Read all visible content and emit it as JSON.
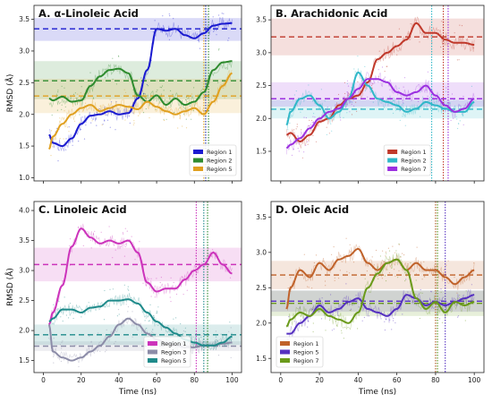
{
  "figure": {
    "panels": [
      "A",
      "B",
      "C",
      "D"
    ]
  },
  "chart_data": [
    {
      "type": "line",
      "title": "A. α-Linoleic Acid",
      "xlabel": "",
      "ylabel": "RMSD (Å)",
      "xlim": [
        -5,
        105
      ],
      "ylim": [
        0.95,
        3.72
      ],
      "xticks": [
        0,
        20,
        40,
        60,
        80,
        100
      ],
      "yticks": [
        1.0,
        1.5,
        2.0,
        2.5,
        3.0,
        3.5
      ],
      "show_xtick_labels": false,
      "legend_position": "lower-right",
      "grid": false,
      "vlines": [
        {
          "x": 86,
          "color": "#1a2fb0"
        },
        {
          "x": 87.5,
          "color": "#2e8b2e"
        },
        {
          "x": 85,
          "color": "#e0a020"
        }
      ],
      "series": [
        {
          "name": "Region 1",
          "color": "#1a1ad0",
          "mean": 3.35,
          "band": [
            3.16,
            3.52
          ],
          "x": [
            3,
            5,
            10,
            15,
            20,
            25,
            30,
            35,
            40,
            45,
            50,
            55,
            60,
            65,
            70,
            75,
            80,
            85,
            90,
            95,
            100
          ],
          "y": [
            1.68,
            1.55,
            1.5,
            1.62,
            1.85,
            1.98,
            2.0,
            2.05,
            2.0,
            2.02,
            2.25,
            2.7,
            3.35,
            3.32,
            3.35,
            3.25,
            3.2,
            3.28,
            3.4,
            3.43,
            3.44
          ]
        },
        {
          "name": "Region 2",
          "color": "#2e8b2e",
          "mean": 2.53,
          "band": [
            2.24,
            2.84
          ],
          "x": [
            3,
            5,
            10,
            15,
            20,
            25,
            30,
            35,
            40,
            45,
            50,
            55,
            60,
            65,
            70,
            75,
            80,
            85,
            90,
            95,
            100
          ],
          "y": [
            2.25,
            2.22,
            2.28,
            2.2,
            2.22,
            2.45,
            2.6,
            2.7,
            2.72,
            2.65,
            2.3,
            2.2,
            2.3,
            2.15,
            2.25,
            2.15,
            2.2,
            2.35,
            2.7,
            2.82,
            2.84
          ]
        },
        {
          "name": "Region 5",
          "color": "#e0a020",
          "mean": 2.29,
          "band": [
            2.02,
            2.56
          ],
          "x": [
            3,
            5,
            10,
            15,
            20,
            25,
            30,
            35,
            40,
            45,
            50,
            55,
            60,
            65,
            70,
            75,
            80,
            85,
            90,
            95,
            100
          ],
          "y": [
            1.45,
            1.65,
            1.85,
            2.0,
            2.1,
            2.15,
            2.05,
            2.1,
            2.15,
            2.12,
            2.08,
            2.2,
            2.12,
            2.05,
            2.0,
            2.05,
            2.1,
            2.0,
            2.2,
            2.45,
            2.65
          ]
        }
      ]
    },
    {
      "type": "line",
      "title": "B. Arachidonic Acid",
      "xlabel": "",
      "ylabel": "",
      "xlim": [
        -5,
        105
      ],
      "ylim": [
        1.05,
        3.72
      ],
      "xticks": [
        0,
        20,
        40,
        60,
        80,
        100
      ],
      "yticks": [
        1.5,
        2.0,
        2.5,
        3.0,
        3.5
      ],
      "show_xtick_labels": false,
      "legend_position": "lower-center",
      "grid": false,
      "vlines": [
        {
          "x": 78,
          "color": "#30b8c8"
        },
        {
          "x": 84,
          "color": "#c0392b"
        },
        {
          "x": 86.5,
          "color": "#9b30e0"
        }
      ],
      "series": [
        {
          "name": "Region 1",
          "color": "#c0392b",
          "mean": 3.24,
          "band": [
            2.96,
            3.52
          ],
          "x": [
            3,
            5,
            10,
            15,
            20,
            25,
            30,
            35,
            40,
            45,
            50,
            55,
            60,
            65,
            70,
            75,
            80,
            85,
            90,
            95,
            100
          ],
          "y": [
            1.75,
            1.78,
            1.65,
            1.75,
            1.95,
            2.0,
            2.2,
            2.3,
            2.35,
            2.55,
            2.9,
            3.0,
            3.1,
            3.2,
            3.45,
            3.3,
            3.3,
            3.2,
            3.15,
            3.15,
            3.12
          ]
        },
        {
          "name": "Region 2",
          "color": "#30b8c8",
          "mean": 2.14,
          "band": [
            2.0,
            2.28
          ],
          "x": [
            3,
            5,
            10,
            15,
            20,
            25,
            30,
            35,
            40,
            45,
            50,
            55,
            60,
            65,
            70,
            75,
            80,
            85,
            90,
            95,
            100
          ],
          "y": [
            1.9,
            2.1,
            2.3,
            2.35,
            2.2,
            2.0,
            2.1,
            2.3,
            2.7,
            2.5,
            2.3,
            2.25,
            2.2,
            2.1,
            2.15,
            2.25,
            2.2,
            2.15,
            2.1,
            2.1,
            2.25
          ]
        },
        {
          "name": "Region 7",
          "color": "#9b30e0",
          "mean": 2.3,
          "band": [
            2.18,
            2.55
          ],
          "x": [
            3,
            5,
            10,
            15,
            20,
            25,
            30,
            35,
            40,
            45,
            50,
            55,
            60,
            65,
            70,
            75,
            80,
            85,
            90,
            95,
            100
          ],
          "y": [
            1.55,
            1.6,
            1.7,
            1.85,
            2.0,
            2.1,
            2.15,
            2.3,
            2.45,
            2.6,
            2.6,
            2.55,
            2.4,
            2.35,
            2.4,
            2.5,
            2.35,
            2.2,
            2.1,
            2.15,
            2.3
          ]
        }
      ]
    },
    {
      "type": "line",
      "title": "C. Linoleic Acid",
      "xlabel": "Time (ns)",
      "ylabel": "RMSD (Å)",
      "xlim": [
        -5,
        105
      ],
      "ylim": [
        1.3,
        4.15
      ],
      "xticks": [
        0,
        20,
        40,
        60,
        80,
        100
      ],
      "yticks": [
        1.5,
        2.0,
        2.5,
        3.0,
        3.5,
        4.0
      ],
      "show_xtick_labels": true,
      "legend_position": "lower-center",
      "grid": false,
      "vlines": [
        {
          "x": 81,
          "color": "#cc33bb"
        },
        {
          "x": 85,
          "color": "#1e8a8a"
        },
        {
          "x": 87,
          "color": "#2e8b2e"
        }
      ],
      "series": [
        {
          "name": "Region 1",
          "color": "#cc33bb",
          "mean": 3.1,
          "band": [
            2.82,
            3.38
          ],
          "x": [
            3,
            5,
            10,
            15,
            20,
            25,
            30,
            35,
            40,
            45,
            50,
            55,
            60,
            65,
            70,
            75,
            80,
            85,
            90,
            95,
            100
          ],
          "y": [
            2.1,
            2.3,
            2.75,
            3.4,
            3.7,
            3.55,
            3.45,
            3.5,
            3.45,
            3.5,
            3.3,
            2.8,
            2.65,
            2.7,
            2.7,
            2.85,
            3.0,
            3.1,
            3.3,
            3.1,
            2.95
          ]
        },
        {
          "name": "Region 3",
          "color": "#8c8ca8",
          "mean": 1.74,
          "band": [
            1.66,
            1.82
          ],
          "x": [
            3,
            5,
            10,
            15,
            20,
            25,
            30,
            35,
            40,
            45,
            50,
            55,
            60,
            65,
            70,
            75,
            80,
            85,
            90,
            95,
            100
          ],
          "y": [
            2.1,
            1.65,
            1.55,
            1.5,
            1.55,
            1.65,
            1.75,
            1.9,
            2.1,
            2.2,
            2.1,
            1.95,
            1.85,
            1.8,
            1.75,
            1.72,
            1.72,
            1.75,
            1.75,
            1.78,
            1.8
          ]
        },
        {
          "name": "Region 5",
          "color": "#1e8a8a",
          "mean": 1.93,
          "band": [
            1.76,
            2.1
          ],
          "x": [
            3,
            5,
            10,
            15,
            20,
            25,
            30,
            35,
            40,
            45,
            50,
            55,
            60,
            65,
            70,
            75,
            80,
            85,
            90,
            95,
            100
          ],
          "y": [
            2.15,
            2.2,
            2.35,
            2.35,
            2.3,
            2.38,
            2.4,
            2.5,
            2.5,
            2.52,
            2.45,
            2.3,
            2.15,
            2.05,
            1.95,
            1.85,
            1.8,
            1.75,
            1.75,
            1.8,
            1.9
          ]
        }
      ]
    },
    {
      "type": "line",
      "title": "D. Oleic Acid",
      "xlabel": "Time (ns)",
      "ylabel": "",
      "xlim": [
        -5,
        105
      ],
      "ylim": [
        1.3,
        3.72
      ],
      "xticks": [
        0,
        20,
        40,
        60,
        80,
        100
      ],
      "yticks": [
        1.5,
        2.0,
        2.5,
        3.0,
        3.5
      ],
      "show_xtick_labels": true,
      "legend_position": "lower-left",
      "grid": false,
      "vlines": [
        {
          "x": 80,
          "color": "#b05820"
        },
        {
          "x": 81,
          "color": "#5a9a20"
        },
        {
          "x": 85,
          "color": "#5530c0"
        }
      ],
      "series": [
        {
          "name": "Region 1",
          "color": "#c0622a",
          "mean": 2.68,
          "band": [
            2.48,
            2.88
          ],
          "x": [
            3,
            5,
            10,
            15,
            20,
            25,
            30,
            35,
            40,
            45,
            50,
            55,
            60,
            65,
            70,
            75,
            80,
            85,
            90,
            95,
            100
          ],
          "y": [
            2.2,
            2.5,
            2.75,
            2.65,
            2.85,
            2.75,
            2.9,
            2.95,
            3.05,
            2.85,
            2.75,
            2.85,
            2.9,
            2.75,
            2.85,
            2.75,
            2.75,
            2.65,
            2.55,
            2.65,
            2.75
          ]
        },
        {
          "name": "Region 5",
          "color": "#5530c0",
          "mean": 2.31,
          "band": [
            2.16,
            2.46
          ],
          "x": [
            3,
            5,
            10,
            15,
            20,
            25,
            30,
            35,
            40,
            45,
            50,
            55,
            60,
            65,
            70,
            75,
            80,
            85,
            90,
            95,
            100
          ],
          "y": [
            1.85,
            1.85,
            2.0,
            2.1,
            2.25,
            2.15,
            2.2,
            2.3,
            2.35,
            2.2,
            2.15,
            2.1,
            2.2,
            2.4,
            2.35,
            2.25,
            2.3,
            2.25,
            2.3,
            2.35,
            2.4
          ]
        },
        {
          "name": "Region 7",
          "color": "#6a9a1a",
          "mean": 2.28,
          "band": [
            2.1,
            2.46
          ],
          "x": [
            3,
            5,
            10,
            15,
            20,
            25,
            30,
            35,
            40,
            45,
            50,
            55,
            60,
            65,
            70,
            75,
            80,
            85,
            90,
            95,
            100
          ],
          "y": [
            1.95,
            2.05,
            2.15,
            2.1,
            2.2,
            2.1,
            2.05,
            2.0,
            2.15,
            2.5,
            2.7,
            2.85,
            2.9,
            2.75,
            2.35,
            2.2,
            2.3,
            2.15,
            2.3,
            2.25,
            2.3
          ]
        }
      ]
    }
  ]
}
